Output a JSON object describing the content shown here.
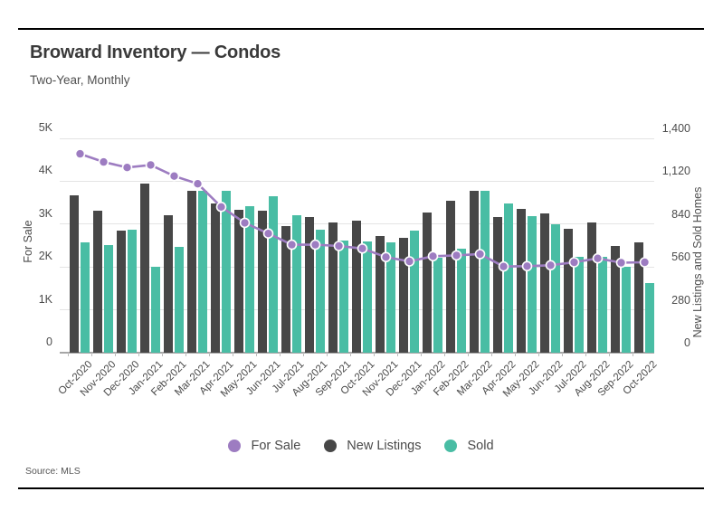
{
  "page": {
    "title": "Broward Inventory — Condos",
    "subtitle": "Two-Year, Monthly",
    "source": "Source: MLS"
  },
  "legend": [
    {
      "label": "For Sale",
      "color": "#9d7cc1"
    },
    {
      "label": "New Listings",
      "color": "#474747"
    },
    {
      "label": "Sold",
      "color": "#49bda4"
    }
  ],
  "colors": {
    "for_sale_line": "#9d7cc1",
    "new_listings_bar": "#474747",
    "sold_bar": "#49bda4",
    "gridline": "#e4e4e4"
  },
  "chart_data": {
    "type": "combo-line-grouped-bar",
    "title": "Broward Inventory — Condos",
    "subtitle": "Two-Year, Monthly",
    "grid": true,
    "legend_position": "bottom",
    "categories": [
      "Oct-2020",
      "Nov-2020",
      "Dec-2020",
      "Jan-2021",
      "Feb-2021",
      "Mar-2021",
      "Apr-2021",
      "May-2021",
      "Jun-2021",
      "Jul-2021",
      "Aug-2021",
      "Sep-2021",
      "Oct-2021",
      "Nov-2021",
      "Dec-2021",
      "Jan-2022",
      "Feb-2022",
      "Mar-2022",
      "Apr-2022",
      "May-2022",
      "Jun-2022",
      "Jul-2022",
      "Aug-2022",
      "Sep-2022",
      "Oct-2022"
    ],
    "series": [
      {
        "name": "For Sale",
        "type": "line",
        "axis": "left",
        "color": "#9d7cc1",
        "values": [
          4640,
          4450,
          4320,
          4380,
          4120,
          3940,
          3400,
          3030,
          2780,
          2520,
          2520,
          2490,
          2430,
          2230,
          2130,
          2250,
          2270,
          2300,
          2010,
          2020,
          2040,
          2110,
          2200,
          2100,
          2110
        ]
      },
      {
        "name": "New Listings",
        "type": "bar",
        "axis": "right",
        "color": "#474747",
        "values": [
          1030,
          925,
          800,
          1105,
          900,
          1060,
          975,
          935,
          925,
          830,
          885,
          850,
          860,
          760,
          750,
          915,
          995,
          1060,
          885,
          940,
          910,
          810,
          850,
          695,
          720
        ]
      },
      {
        "name": "Sold",
        "type": "bar",
        "axis": "right",
        "color": "#49bda4",
        "values": [
          720,
          705,
          805,
          560,
          690,
          1055,
          1060,
          960,
          1025,
          900,
          805,
          730,
          725,
          720,
          800,
          620,
          680,
          1060,
          975,
          890,
          840,
          625,
          625,
          560,
          455
        ]
      }
    ],
    "left_axis": {
      "label": "For Sale",
      "min": 0,
      "max": 5000,
      "ticks": [
        "0",
        "1K",
        "2K",
        "3K",
        "4K",
        "5K"
      ]
    },
    "right_axis": {
      "label": "New Listings and Sold Homes",
      "min": 0,
      "max": 1400,
      "ticks": [
        "0",
        "280",
        "560",
        "840",
        "1,120",
        "1,400"
      ]
    }
  }
}
